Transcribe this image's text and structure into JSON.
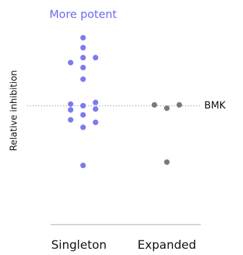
{
  "chart_data": {
    "type": "scatter",
    "title": "",
    "top_annotation": "More potent",
    "ylabel": "Relative inhibition",
    "xlabel": "",
    "categories": [
      "Singleton",
      "Expanded"
    ],
    "ylim": [
      0,
      10
    ],
    "reference_line": {
      "label": "BMK",
      "y": 5.0
    },
    "grid": false,
    "legend": "none",
    "colors": {
      "singleton": "#7b7bef",
      "expanded": "#7a7a7a",
      "annotation": "#6b6bef",
      "reference_line": "#aaaaaa",
      "axis": "#aaaaaa"
    },
    "series": [
      {
        "category": "Singleton",
        "points": [
          {
            "offset": 0,
            "y": 9.1
          },
          {
            "offset": 0,
            "y": 8.5
          },
          {
            "offset": 0,
            "y": 7.9
          },
          {
            "offset": -1,
            "y": 7.6
          },
          {
            "offset": 1,
            "y": 7.9
          },
          {
            "offset": 0,
            "y": 7.3
          },
          {
            "offset": 0,
            "y": 6.6
          },
          {
            "offset": -1,
            "y": 5.1
          },
          {
            "offset": 1,
            "y": 5.2
          },
          {
            "offset": 0,
            "y": 5.0
          },
          {
            "offset": -1,
            "y": 4.75
          },
          {
            "offset": 1,
            "y": 4.8
          },
          {
            "offset": 0,
            "y": 4.45
          },
          {
            "offset": -1,
            "y": 4.15
          },
          {
            "offset": 1,
            "y": 4.0
          },
          {
            "offset": 0,
            "y": 3.7
          },
          {
            "offset": 0,
            "y": 1.4
          }
        ]
      },
      {
        "category": "Expanded",
        "points": [
          {
            "offset": -1,
            "y": 5.05
          },
          {
            "offset": 1,
            "y": 5.05
          },
          {
            "offset": 0,
            "y": 4.85
          },
          {
            "offset": 0,
            "y": 1.6
          }
        ]
      }
    ]
  }
}
